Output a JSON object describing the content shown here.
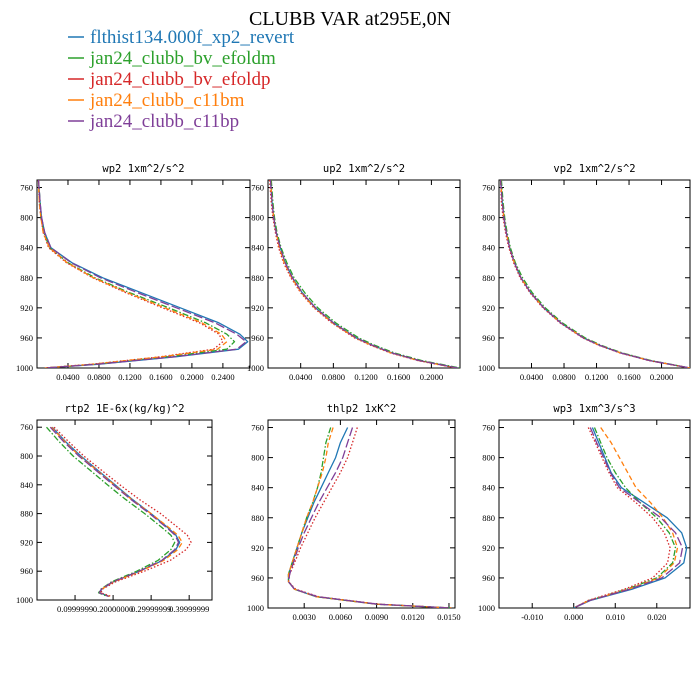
{
  "figure": {
    "title": "CLUBB VAR at295E,0N",
    "legend": [
      {
        "name": "flthist134.000f_xp2_revert",
        "color": "#1f77b4",
        "dash": "solid"
      },
      {
        "name": "jan24_clubb_bv_efoldm",
        "color": "#2ca02c",
        "dash": "dashdot"
      },
      {
        "name": "jan24_clubb_bv_efoldp",
        "color": "#d62728",
        "dash": "dot"
      },
      {
        "name": "jan24_clubb_c11bm",
        "color": "#ff7f0e",
        "dash": "dash"
      },
      {
        "name": "jan24_clubb_c11bp",
        "color": "#7f3f98",
        "dash": "longdash"
      }
    ]
  },
  "chart_data": [
    {
      "type": "line",
      "title": "wp2   1xm^2/s^2",
      "ylim": [
        1000,
        750
      ],
      "yticks": [
        760,
        800,
        840,
        880,
        920,
        960,
        1000
      ],
      "xlim": [
        0.0,
        0.275
      ],
      "xticks": [
        0.04,
        0.08,
        0.12,
        0.16,
        0.2,
        0.24
      ],
      "xtick_labels": [
        "0.0400",
        "0.0800",
        "0.1200",
        "0.1600",
        "0.2000",
        "0.2400"
      ],
      "pressure": [
        750,
        780,
        800,
        820,
        840,
        860,
        880,
        900,
        920,
        940,
        955,
        965,
        975,
        985,
        995,
        1000
      ],
      "series": [
        {
          "name": "flthist134.000f_xp2_revert",
          "values": [
            0.002,
            0.004,
            0.006,
            0.01,
            0.018,
            0.045,
            0.085,
            0.135,
            0.185,
            0.235,
            0.262,
            0.272,
            0.26,
            0.18,
            0.08,
            0.01
          ]
        },
        {
          "name": "jan24_clubb_bv_efoldm",
          "values": [
            0.002,
            0.004,
            0.005,
            0.009,
            0.016,
            0.04,
            0.075,
            0.12,
            0.17,
            0.218,
            0.245,
            0.255,
            0.245,
            0.17,
            0.075,
            0.01
          ]
        },
        {
          "name": "jan24_clubb_bv_efoldp",
          "values": [
            0.002,
            0.003,
            0.005,
            0.008,
            0.015,
            0.038,
            0.072,
            0.115,
            0.162,
            0.21,
            0.235,
            0.24,
            0.228,
            0.16,
            0.07,
            0.01
          ]
        },
        {
          "name": "jan24_clubb_c11bm",
          "values": [
            0.002,
            0.003,
            0.005,
            0.008,
            0.016,
            0.039,
            0.073,
            0.117,
            0.165,
            0.213,
            0.238,
            0.245,
            0.233,
            0.162,
            0.072,
            0.01
          ]
        },
        {
          "name": "jan24_clubb_c11bp",
          "values": [
            0.002,
            0.004,
            0.006,
            0.01,
            0.018,
            0.044,
            0.082,
            0.13,
            0.18,
            0.23,
            0.258,
            0.27,
            0.258,
            0.178,
            0.078,
            0.01
          ]
        }
      ]
    },
    {
      "type": "line",
      "title": "up2   1xm^2/s^2",
      "ylim": [
        1000,
        750
      ],
      "yticks": [
        760,
        800,
        840,
        880,
        920,
        960,
        1000
      ],
      "xlim": [
        0.0,
        0.235
      ],
      "xticks": [
        0.04,
        0.08,
        0.12,
        0.16,
        0.2
      ],
      "xtick_labels": [
        "0.0400",
        "0.0800",
        "0.1200",
        "0.1600",
        "0.2000"
      ],
      "pressure": [
        750,
        780,
        800,
        820,
        840,
        860,
        880,
        900,
        920,
        940,
        960,
        970,
        980,
        990,
        1000
      ],
      "series": [
        {
          "name": "flthist134.000f_xp2_revert",
          "values": [
            0.003,
            0.005,
            0.007,
            0.01,
            0.015,
            0.021,
            0.03,
            0.042,
            0.058,
            0.08,
            0.108,
            0.128,
            0.152,
            0.185,
            0.232
          ]
        },
        {
          "name": "jan24_clubb_bv_efoldm",
          "values": [
            0.004,
            0.006,
            0.008,
            0.011,
            0.016,
            0.023,
            0.032,
            0.045,
            0.061,
            0.083,
            0.111,
            0.131,
            0.155,
            0.188,
            0.235
          ]
        },
        {
          "name": "jan24_clubb_bv_efoldp",
          "values": [
            0.002,
            0.004,
            0.006,
            0.009,
            0.013,
            0.019,
            0.028,
            0.04,
            0.056,
            0.078,
            0.106,
            0.126,
            0.15,
            0.183,
            0.23
          ]
        },
        {
          "name": "jan24_clubb_c11bm",
          "values": [
            0.003,
            0.005,
            0.007,
            0.01,
            0.014,
            0.02,
            0.029,
            0.041,
            0.057,
            0.079,
            0.107,
            0.127,
            0.151,
            0.184,
            0.231
          ]
        },
        {
          "name": "jan24_clubb_c11bp",
          "values": [
            0.003,
            0.005,
            0.007,
            0.01,
            0.015,
            0.021,
            0.03,
            0.042,
            0.058,
            0.08,
            0.108,
            0.128,
            0.152,
            0.185,
            0.232
          ]
        }
      ]
    },
    {
      "type": "line",
      "title": "vp2   1xm^2/s^2",
      "ylim": [
        1000,
        750
      ],
      "yticks": [
        760,
        800,
        840,
        880,
        920,
        960,
        1000
      ],
      "xlim": [
        0.0,
        0.235
      ],
      "xticks": [
        0.04,
        0.08,
        0.12,
        0.16,
        0.2
      ],
      "xtick_labels": [
        "0.0400",
        "0.0800",
        "0.1200",
        "0.1600",
        "0.2000"
      ],
      "pressure": [
        750,
        780,
        800,
        820,
        840,
        860,
        880,
        900,
        920,
        940,
        960,
        970,
        980,
        990,
        1000
      ],
      "series": [
        {
          "name": "flthist134.000f_xp2_revert",
          "values": [
            0.002,
            0.004,
            0.006,
            0.009,
            0.013,
            0.019,
            0.027,
            0.039,
            0.055,
            0.076,
            0.104,
            0.124,
            0.15,
            0.185,
            0.235
          ]
        },
        {
          "name": "jan24_clubb_bv_efoldm",
          "values": [
            0.003,
            0.005,
            0.007,
            0.01,
            0.014,
            0.02,
            0.029,
            0.041,
            0.057,
            0.078,
            0.106,
            0.126,
            0.152,
            0.187,
            0.235
          ]
        },
        {
          "name": "jan24_clubb_bv_efoldp",
          "values": [
            0.002,
            0.003,
            0.005,
            0.008,
            0.012,
            0.018,
            0.026,
            0.038,
            0.054,
            0.075,
            0.103,
            0.123,
            0.149,
            0.184,
            0.234
          ]
        },
        {
          "name": "jan24_clubb_c11bm",
          "values": [
            0.002,
            0.004,
            0.006,
            0.009,
            0.013,
            0.019,
            0.027,
            0.039,
            0.055,
            0.076,
            0.104,
            0.124,
            0.15,
            0.185,
            0.235
          ]
        },
        {
          "name": "jan24_clubb_c11bp",
          "values": [
            0.002,
            0.004,
            0.006,
            0.009,
            0.013,
            0.019,
            0.027,
            0.039,
            0.055,
            0.076,
            0.104,
            0.124,
            0.15,
            0.185,
            0.235
          ]
        }
      ]
    },
    {
      "type": "line",
      "title": "rtp2   1E-6x(kg/kg)^2",
      "ylim": [
        1000,
        750
      ],
      "yticks": [
        760,
        800,
        840,
        880,
        920,
        960,
        1000
      ],
      "xlim": [
        0.0,
        0.46
      ],
      "xticks": [
        0.1,
        0.2,
        0.3,
        0.4
      ],
      "xtick_labels": [
        "0.0999999",
        "0.20000000",
        "0.29999999",
        "0.39999999"
      ],
      "pressure": [
        760,
        780,
        800,
        820,
        840,
        860,
        880,
        900,
        910,
        920,
        930,
        945,
        960,
        975,
        985,
        990,
        995
      ],
      "series": [
        {
          "name": "flthist134.000f_xp2_revert",
          "values": [
            0.04,
            0.075,
            0.115,
            0.16,
            0.205,
            0.25,
            0.3,
            0.345,
            0.365,
            0.375,
            0.365,
            0.33,
            0.27,
            0.2,
            0.17,
            0.165,
            0.19
          ]
        },
        {
          "name": "jan24_clubb_bv_efoldm",
          "values": [
            0.025,
            0.058,
            0.095,
            0.14,
            0.185,
            0.232,
            0.283,
            0.33,
            0.352,
            0.362,
            0.352,
            0.318,
            0.262,
            0.195,
            0.168,
            0.162,
            0.185
          ]
        },
        {
          "name": "jan24_clubb_bv_efoldp",
          "values": [
            0.045,
            0.083,
            0.123,
            0.17,
            0.218,
            0.268,
            0.325,
            0.372,
            0.395,
            0.405,
            0.392,
            0.35,
            0.282,
            0.205,
            0.172,
            0.168,
            0.195
          ]
        },
        {
          "name": "jan24_clubb_c11bm",
          "values": [
            0.038,
            0.073,
            0.112,
            0.158,
            0.203,
            0.248,
            0.3,
            0.348,
            0.37,
            0.382,
            0.37,
            0.333,
            0.272,
            0.2,
            0.17,
            0.165,
            0.19
          ]
        },
        {
          "name": "jan24_clubb_c11bp",
          "values": [
            0.035,
            0.07,
            0.11,
            0.155,
            0.2,
            0.246,
            0.296,
            0.342,
            0.363,
            0.372,
            0.362,
            0.328,
            0.268,
            0.198,
            0.169,
            0.164,
            0.188
          ]
        }
      ]
    },
    {
      "type": "line",
      "title": "thlp2   1xK^2",
      "ylim": [
        1000,
        750
      ],
      "yticks": [
        760,
        800,
        840,
        880,
        920,
        960,
        1000
      ],
      "xlim": [
        0.0,
        0.0155
      ],
      "xticks": [
        0.003,
        0.006,
        0.009,
        0.012,
        0.015
      ],
      "xtick_labels": [
        "0.0030",
        "0.0060",
        "0.0090",
        "0.0120",
        "0.0150"
      ],
      "pressure": [
        760,
        780,
        800,
        820,
        840,
        860,
        880,
        900,
        920,
        940,
        955,
        965,
        975,
        985,
        995,
        1000
      ],
      "series": [
        {
          "name": "flthist134.000f_xp2_revert",
          "values": [
            0.0066,
            0.006,
            0.0056,
            0.005,
            0.0044,
            0.0038,
            0.0033,
            0.0028,
            0.0024,
            0.002,
            0.0017,
            0.0017,
            0.0022,
            0.004,
            0.009,
            0.0152
          ]
        },
        {
          "name": "jan24_clubb_bv_efoldm",
          "values": [
            0.0052,
            0.0048,
            0.0046,
            0.0044,
            0.0041,
            0.0037,
            0.0032,
            0.0028,
            0.0024,
            0.002,
            0.0017,
            0.0017,
            0.0022,
            0.004,
            0.009,
            0.0152
          ]
        },
        {
          "name": "jan24_clubb_bv_efoldp",
          "values": [
            0.0074,
            0.007,
            0.0066,
            0.006,
            0.0053,
            0.0046,
            0.0039,
            0.0033,
            0.0027,
            0.0022,
            0.0018,
            0.0017,
            0.0023,
            0.0042,
            0.0092,
            0.0152
          ]
        },
        {
          "name": "jan24_clubb_c11bm",
          "values": [
            0.0054,
            0.005,
            0.0048,
            0.0045,
            0.0041,
            0.0037,
            0.0032,
            0.0028,
            0.0024,
            0.002,
            0.0017,
            0.0017,
            0.0022,
            0.004,
            0.009,
            0.0152
          ]
        },
        {
          "name": "jan24_clubb_c11bp",
          "values": [
            0.007,
            0.0066,
            0.0062,
            0.0056,
            0.0049,
            0.0042,
            0.0036,
            0.003,
            0.0025,
            0.0021,
            0.0018,
            0.0017,
            0.0022,
            0.0041,
            0.0091,
            0.0152
          ]
        }
      ]
    },
    {
      "type": "line",
      "title": "wp3   1xm^3/s^3",
      "ylim": [
        1000,
        750
      ],
      "yticks": [
        760,
        800,
        840,
        880,
        920,
        960,
        1000
      ],
      "xlim": [
        -0.018,
        0.028
      ],
      "xticks": [
        -0.01,
        0.0,
        0.01,
        0.02
      ],
      "xtick_labels": [
        "-0.010",
        "0.000",
        "0.010",
        "0.020"
      ],
      "pressure": [
        760,
        780,
        800,
        820,
        840,
        860,
        880,
        900,
        920,
        940,
        960,
        975,
        990,
        1000
      ],
      "series": [
        {
          "name": "flthist134.000f_xp2_revert",
          "values": [
            0.0045,
            0.006,
            0.0075,
            0.009,
            0.0115,
            0.017,
            0.0225,
            0.026,
            0.0272,
            0.0265,
            0.022,
            0.014,
            0.004,
            0.0
          ]
        },
        {
          "name": "jan24_clubb_bv_efoldm",
          "values": [
            0.005,
            0.0065,
            0.008,
            0.01,
            0.0125,
            0.016,
            0.02,
            0.023,
            0.0245,
            0.0238,
            0.02,
            0.0128,
            0.0036,
            0.0
          ]
        },
        {
          "name": "jan24_clubb_bv_efoldp",
          "values": [
            0.0035,
            0.0052,
            0.0068,
            0.0085,
            0.0105,
            0.015,
            0.019,
            0.0218,
            0.0232,
            0.0226,
            0.019,
            0.0122,
            0.0034,
            0.0
          ]
        },
        {
          "name": "jan24_clubb_c11bm",
          "values": [
            0.0065,
            0.009,
            0.011,
            0.013,
            0.015,
            0.0185,
            0.0215,
            0.0238,
            0.025,
            0.0242,
            0.0205,
            0.0132,
            0.0037,
            0.0
          ]
        },
        {
          "name": "jan24_clubb_c11bp",
          "values": [
            0.004,
            0.0055,
            0.0072,
            0.0088,
            0.011,
            0.016,
            0.021,
            0.0245,
            0.0262,
            0.0255,
            0.0212,
            0.0135,
            0.0038,
            0.0
          ]
        }
      ]
    }
  ]
}
